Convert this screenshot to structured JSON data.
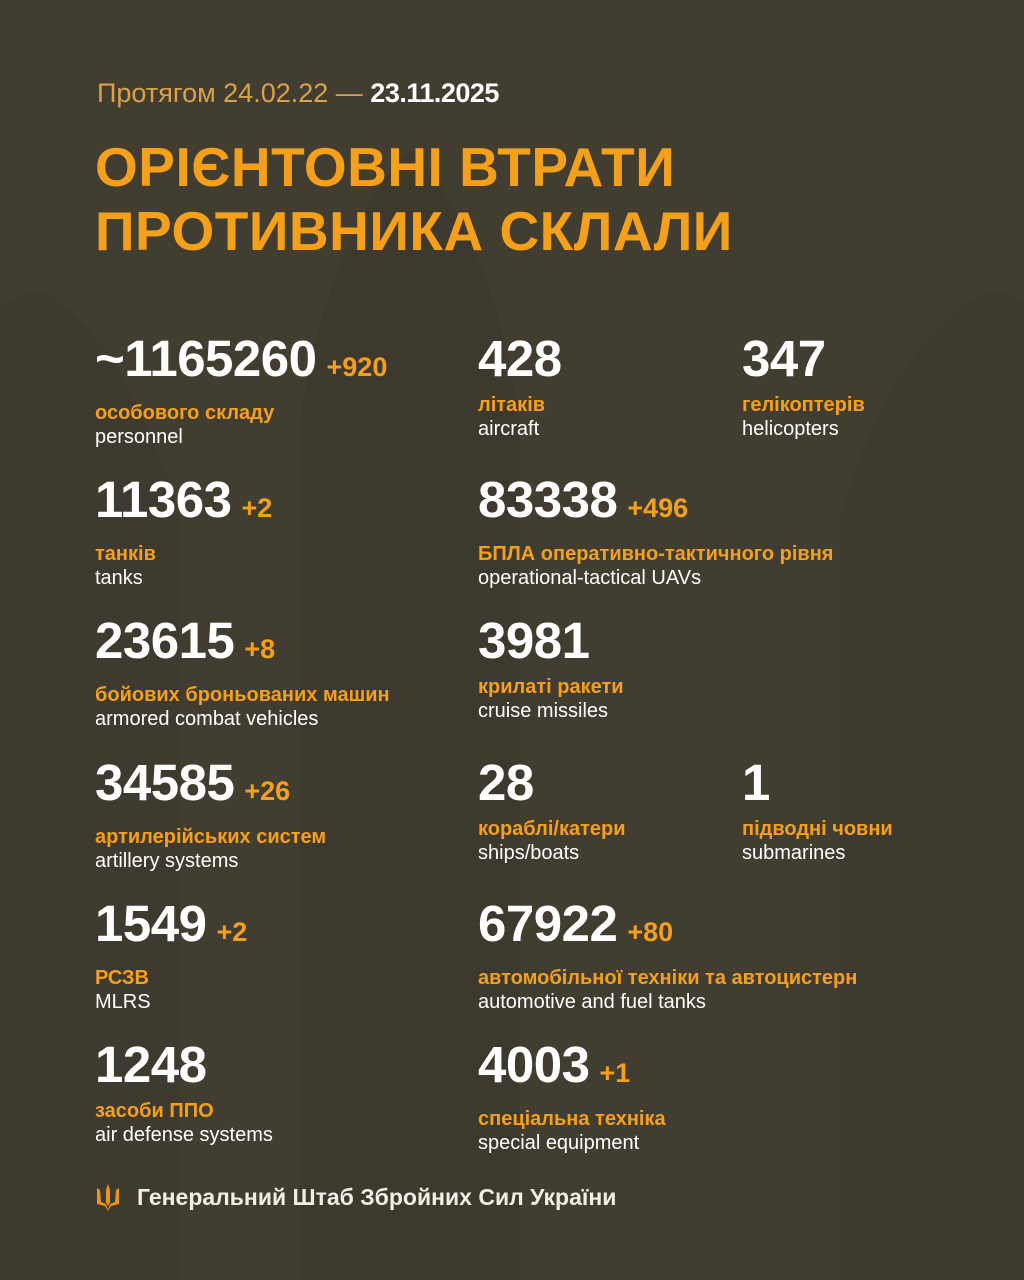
{
  "header": {
    "period_prefix": "Протягом 24.02.22 —",
    "period_end": "23.11.2025",
    "title_line1": "ОРІЄНТОВНІ ВТРАТИ",
    "title_line2": "ПРОТИВНИКА СКЛАЛИ"
  },
  "colors": {
    "background": "#423d31",
    "accent": "#f5a01a",
    "text": "#ffffff"
  },
  "stats": [
    {
      "value": "~1165260",
      "delta": "+920",
      "ua": "особового складу",
      "en": "personnel"
    },
    {
      "value": "428",
      "delta": "",
      "ua": "літаків",
      "en": "aircraft"
    },
    {
      "value": "347",
      "delta": "",
      "ua": "гелікоптерів",
      "en": "helicopters"
    },
    {
      "value": "11363",
      "delta": "+2",
      "ua": "танків",
      "en": "tanks"
    },
    {
      "value": "83338",
      "delta": "+496",
      "ua": "БПЛА оперативно-тактичного рівня",
      "en": "operational-tactical UAVs"
    },
    {
      "value": "23615",
      "delta": "+8",
      "ua": "бойових броньованих машин",
      "en": "armored combat vehicles"
    },
    {
      "value": "3981",
      "delta": "",
      "ua": "крилаті ракети",
      "en": "cruise missiles"
    },
    {
      "value": "34585",
      "delta": "+26",
      "ua": "артилерійських систем",
      "en": "artillery systems"
    },
    {
      "value": "28",
      "delta": "",
      "ua": "кораблі/катери",
      "en": "ships/boats"
    },
    {
      "value": "1",
      "delta": "",
      "ua": "підводні човни",
      "en": "submarines"
    },
    {
      "value": "1549",
      "delta": "+2",
      "ua": "РСЗВ",
      "en": "MLRS"
    },
    {
      "value": "67922",
      "delta": "+80",
      "ua": "автомобільної техніки та автоцистерн",
      "en": "automotive and fuel tanks"
    },
    {
      "value": "1248",
      "delta": "",
      "ua": "засоби ППО",
      "en": "air defense systems"
    },
    {
      "value": "4003",
      "delta": "+1",
      "ua": "спеціальна техніка",
      "en": "special equipment"
    }
  ],
  "footer": {
    "icon": "trident-icon",
    "text": "Генеральний Штаб Збройних Сил України"
  }
}
